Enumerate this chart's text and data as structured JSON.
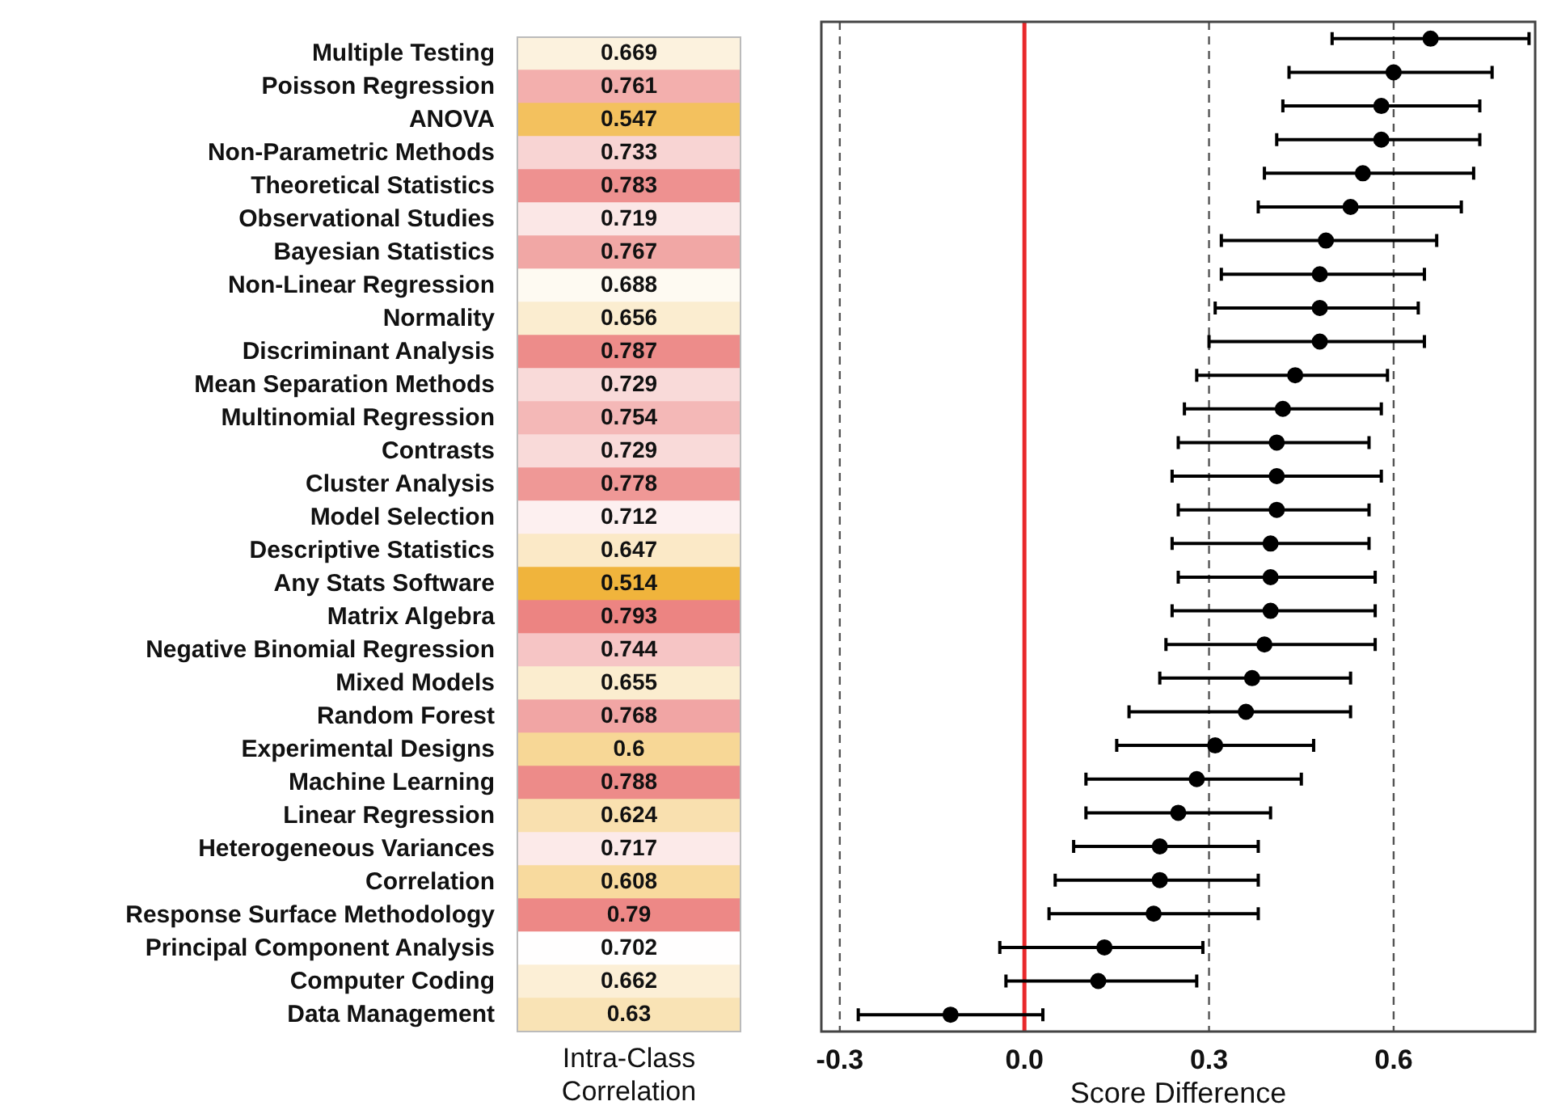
{
  "chart_data": [
    {
      "type": "heatmap",
      "categories": [
        null
      ],
      "xlabel": "Intra-Class Correlation",
      "data_labels": true,
      "y_categories": [
        "Multiple Testing",
        "Poisson Regression",
        "ANOVA",
        "Non-Parametric Methods",
        "Theoretical Statistics",
        "Observational Studies",
        "Bayesian Statistics",
        "Non-Linear Regression",
        "Normality",
        "Discriminant Analysis",
        "Mean Separation Methods",
        "Multinomial Regression",
        "Contrasts",
        "Cluster Analysis",
        "Model Selection",
        "Descriptive Statistics",
        "Any Stats Software",
        "Matrix Algebra",
        "Negative Binomial Regression",
        "Mixed Models",
        "Random Forest",
        "Experimental Designs",
        "Machine Learning",
        "Linear Regression",
        "Heterogeneous Variances",
        "Correlation",
        "Response Surface Methodology",
        "Principal Component Analysis",
        "Computer Coding",
        "Data Management"
      ],
      "cells": [
        [
          0.669
        ],
        [
          0.761
        ],
        [
          0.547
        ],
        [
          0.733
        ],
        [
          0.783
        ],
        [
          0.719
        ],
        [
          0.767
        ],
        [
          0.688
        ],
        [
          0.656
        ],
        [
          0.787
        ],
        [
          0.729
        ],
        [
          0.754
        ],
        [
          0.729
        ],
        [
          0.778
        ],
        [
          0.712
        ],
        [
          0.647
        ],
        [
          0.514
        ],
        [
          0.793
        ],
        [
          0.744
        ],
        [
          0.655
        ],
        [
          0.768
        ],
        [
          0.6
        ],
        [
          0.788
        ],
        [
          0.624
        ],
        [
          0.717
        ],
        [
          0.608
        ],
        [
          0.79
        ],
        [
          0.702
        ],
        [
          0.662
        ],
        [
          0.63
        ]
      ]
    },
    {
      "type": "scatter",
      "orientation": "horizontal",
      "xlabel": "Score Difference",
      "tick_labels": "x",
      "grid": false,
      "marker": "circle",
      "color": "#000000",
      "values": [
        0.66,
        0.6,
        0.58,
        0.58,
        0.55,
        0.53,
        0.49,
        0.48,
        0.48,
        0.48,
        0.44,
        0.42,
        0.41,
        0.41,
        0.41,
        0.4,
        0.4,
        0.4,
        0.39,
        0.37,
        0.36,
        0.31,
        0.28,
        0.25,
        0.22,
        0.22,
        0.21,
        0.13,
        0.12,
        -0.12
      ],
      "errors": [
        [
          0.5,
          0.82
        ],
        [
          0.43,
          0.76
        ],
        [
          0.42,
          0.74
        ],
        [
          0.41,
          0.74
        ],
        [
          0.39,
          0.73
        ],
        [
          0.38,
          0.71
        ],
        [
          0.32,
          0.67
        ],
        [
          0.32,
          0.65
        ],
        [
          0.31,
          0.64
        ],
        [
          0.3,
          0.65
        ],
        [
          0.28,
          0.59
        ],
        [
          0.26,
          0.58
        ],
        [
          0.25,
          0.56
        ],
        [
          0.24,
          0.58
        ],
        [
          0.25,
          0.56
        ],
        [
          0.24,
          0.56
        ],
        [
          0.25,
          0.57
        ],
        [
          0.24,
          0.57
        ],
        [
          0.23,
          0.57
        ],
        [
          0.22,
          0.53
        ],
        [
          0.17,
          0.53
        ],
        [
          0.15,
          0.47
        ],
        [
          0.1,
          0.45
        ],
        [
          0.1,
          0.4
        ],
        [
          0.08,
          0.38
        ],
        [
          0.05,
          0.38
        ],
        [
          0.04,
          0.38
        ],
        [
          -0.04,
          0.29
        ],
        [
          -0.03,
          0.28
        ],
        [
          -0.27,
          0.03
        ]
      ],
      "xlim": [
        -0.33,
        0.83
      ],
      "xticks": [
        {
          "value": -0.3,
          "label": "-0.3"
        },
        {
          "value": 0,
          "label": "0.0"
        },
        {
          "value": 0.3,
          "label": "0.3"
        },
        {
          "value": 0.6,
          "label": "0.6"
        }
      ],
      "ref_lines": [
        {
          "axis": "x",
          "value": -0.3,
          "color": "#555555",
          "line_style": "dashed"
        },
        {
          "axis": "x",
          "value": 0.3,
          "color": "#555555",
          "line_style": "dashed"
        },
        {
          "axis": "x",
          "value": 0.6,
          "color": "#555555",
          "line_style": "dashed"
        },
        {
          "axis": "x",
          "value": 0,
          "color": "#e8282b",
          "line_style": "solid"
        }
      ]
    }
  ]
}
